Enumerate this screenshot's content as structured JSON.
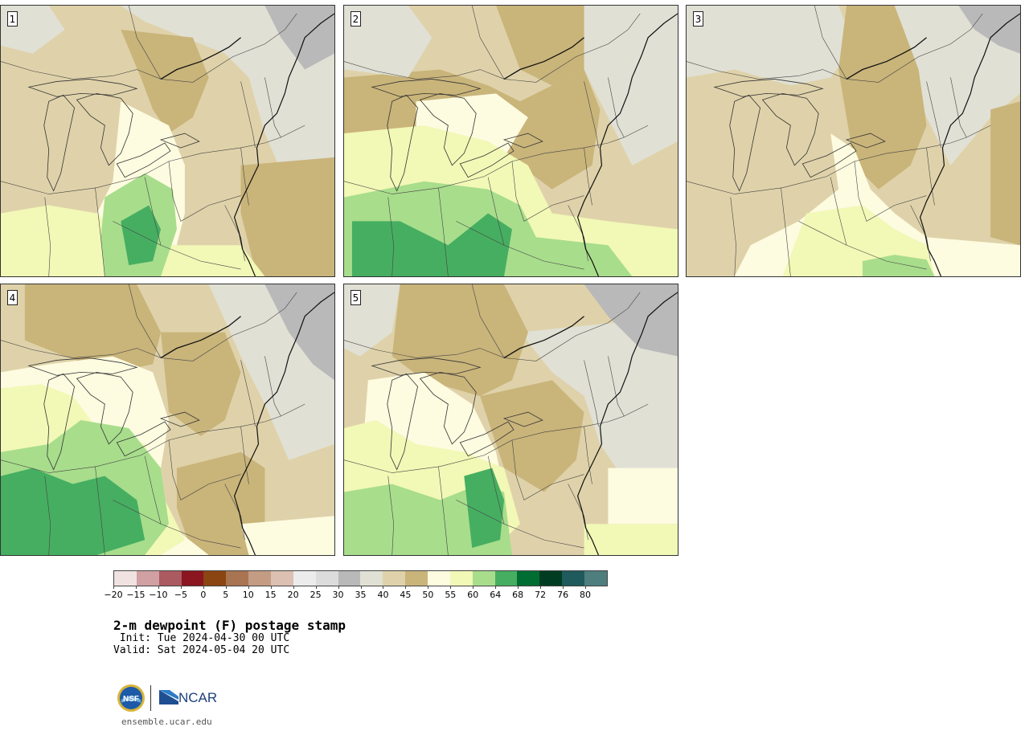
{
  "title": "2-m dewpoint (F) postage stamp",
  "init_line": " Init: Tue 2024-04-30 00 UTC",
  "valid_line": "Valid: Sat 2024-05-04 20 UTC",
  "site_url": "ensemble.ucar.edu",
  "logos": {
    "nsf": "NSF",
    "ncar": "NCAR"
  },
  "members": [
    {
      "label": "1"
    },
    {
      "label": "2"
    },
    {
      "label": "3"
    },
    {
      "label": "4"
    },
    {
      "label": "5"
    }
  ],
  "colorbar": {
    "tick_labels": [
      "−20",
      "−15",
      "−10",
      "−5",
      "0",
      "5",
      "10",
      "15",
      "20",
      "25",
      "30",
      "35",
      "40",
      "45",
      "50",
      "55",
      "60",
      "64",
      "68",
      "72",
      "76",
      "80"
    ],
    "colors": [
      "#f1e2e2",
      "#d0a0a3",
      "#ab5a60",
      "#8b1520",
      "#8b4513",
      "#a87452",
      "#c49c84",
      "#dcc0b2",
      "#ececec",
      "#dcdcdc",
      "#b9b9b9",
      "#e0e0d5",
      "#dfd2aa",
      "#c9b47a",
      "#fdfbe0",
      "#f2f8b6",
      "#a8dd8c",
      "#46ae61",
      "#006e33",
      "#003c22",
      "#1f5a5c",
      "#4e7e7e"
    ]
  },
  "map_colors": {
    "cold_grey": "#b9b9b9",
    "light_grey": "#e0e0d5",
    "tan_light": "#dfd2aa",
    "tan": "#c9b47a",
    "cream": "#fdfbe0",
    "yellow": "#f2f8b6",
    "light_green": "#a8dd8c",
    "green": "#46ae61"
  }
}
